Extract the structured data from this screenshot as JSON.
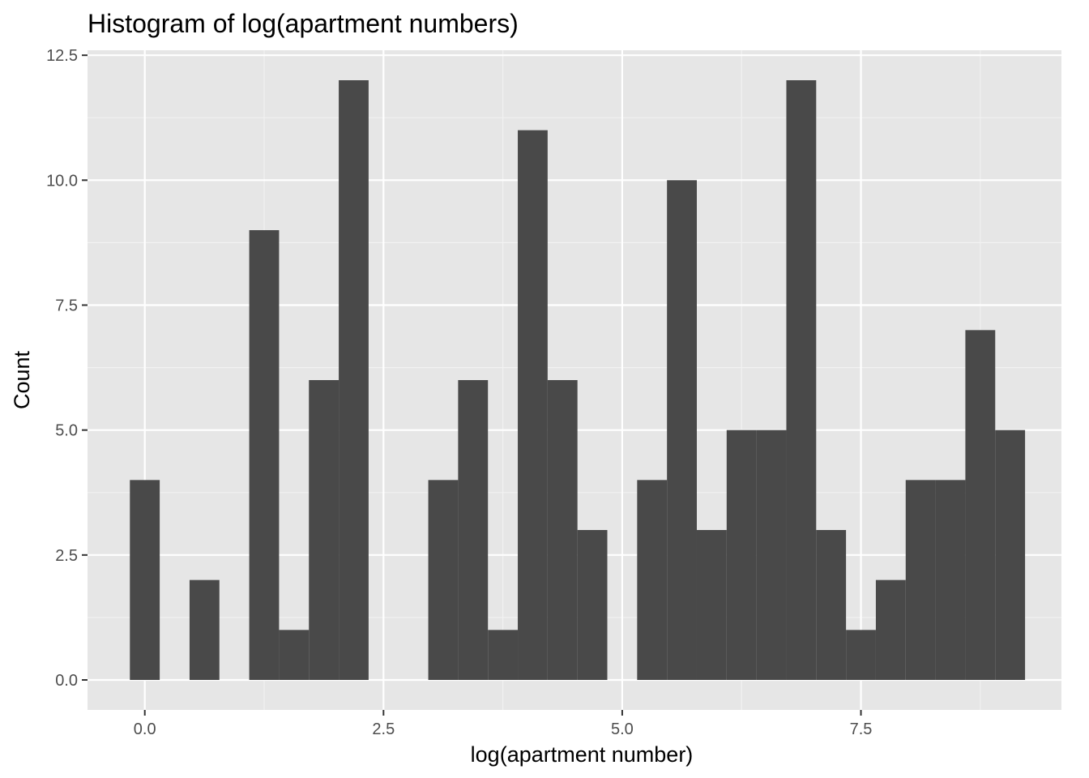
{
  "chart_data": {
    "type": "bar",
    "subtype": "histogram",
    "title": "Histogram of log(apartment numbers)",
    "xlabel": "log(apartment number)",
    "ylabel": "Count",
    "xlim": [
      -0.6,
      9.6
    ],
    "ylim": [
      -0.6,
      12.6
    ],
    "x_ticks": [
      0.0,
      2.5,
      5.0,
      7.5
    ],
    "x_tick_labels": [
      "0.0",
      "2.5",
      "5.0",
      "7.5"
    ],
    "y_ticks": [
      0.0,
      2.5,
      5.0,
      7.5,
      10.0,
      12.5
    ],
    "y_tick_labels": [
      "0.0",
      "2.5",
      "5.0",
      "7.5",
      "10.0",
      "12.5"
    ],
    "grid": true,
    "bin_width": 0.3125,
    "bin_centers": [
      0,
      0.3125,
      0.625,
      0.9375,
      1.25,
      1.5625,
      1.875,
      2.1875,
      2.5,
      2.8125,
      3.125,
      3.4375,
      3.75,
      4.0625,
      4.375,
      4.6875,
      5.0,
      5.3125,
      5.625,
      5.9375,
      6.25,
      6.5625,
      6.875,
      7.1875,
      7.5,
      7.8125,
      8.125,
      8.4375,
      8.75,
      9.0625
    ],
    "values": [
      4,
      0,
      2,
      0,
      9,
      1,
      6,
      12,
      0,
      0,
      4,
      6,
      1,
      11,
      6,
      3,
      0,
      4,
      10,
      3,
      5,
      5,
      12,
      3,
      1,
      2,
      4,
      4,
      7,
      5
    ],
    "colors": {
      "panel": "#e6e6e6",
      "grid_major": "#ffffff",
      "grid_minor": "#f2f2f2",
      "bar": "#494949",
      "tick": "#333333"
    }
  }
}
